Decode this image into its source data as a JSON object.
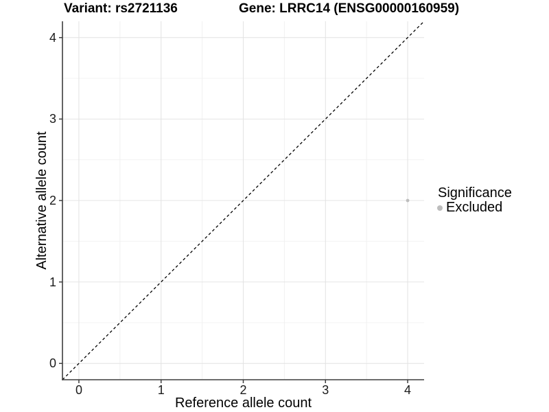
{
  "titles": {
    "variant": "Variant: rs2721136",
    "gene": "Gene: LRRC14 (ENSG00000160959)"
  },
  "chart_data": {
    "type": "scatter",
    "title": "Variant: rs2721136   Gene: LRRC14 (ENSG00000160959)",
    "xlabel": "Reference allele count",
    "ylabel": "Alternative allele count",
    "xlim": [
      -0.2,
      4.2
    ],
    "ylim": [
      -0.2,
      4.2
    ],
    "xticks": [
      0,
      1,
      2,
      3,
      4
    ],
    "yticks": [
      0,
      1,
      2,
      3,
      4
    ],
    "xminor": [
      0.5,
      1.5,
      2.5,
      3.5
    ],
    "yminor": [
      0.5,
      1.5,
      2.5,
      3.5
    ],
    "grid": true,
    "identity_line": {
      "style": "dashed",
      "from": [
        -0.2,
        -0.2
      ],
      "to": [
        4.2,
        4.2
      ],
      "color": "#000000"
    },
    "series": [
      {
        "name": "Excluded",
        "color": "#bdbdbd",
        "points": [
          {
            "x": 4,
            "y": 2
          }
        ]
      }
    ],
    "legend": {
      "title": "Significance",
      "position": "right",
      "entries": [
        {
          "label": "Excluded",
          "color": "#bdbdbd"
        }
      ]
    },
    "colors": {
      "background": "#ffffff",
      "grid_major": "#e4e4e4",
      "grid_minor": "#f0f0f0",
      "axis_line": "#3d3d3d",
      "tick_text": "#1a1a1a",
      "title_text": "#000000"
    }
  }
}
